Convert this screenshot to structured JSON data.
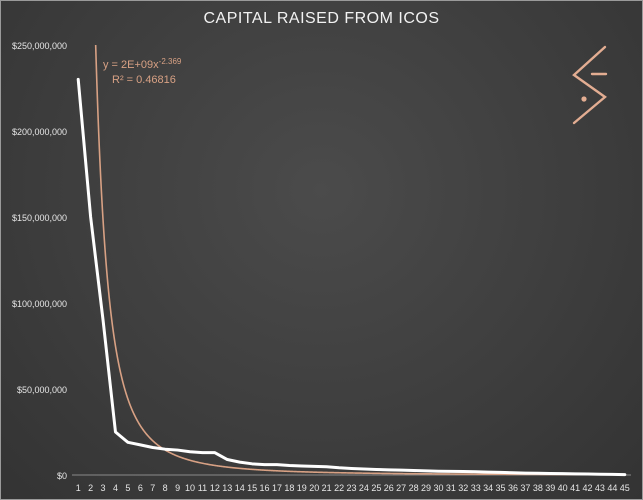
{
  "chart_data": {
    "type": "line",
    "title": "CAPITAL RAISED FROM ICOS",
    "xlabel": "",
    "ylabel": "",
    "x": [
      1,
      2,
      3,
      4,
      5,
      6,
      7,
      8,
      9,
      10,
      11,
      12,
      13,
      14,
      15,
      16,
      17,
      18,
      19,
      20,
      21,
      22,
      23,
      24,
      25,
      26,
      27,
      28,
      29,
      30,
      31,
      32,
      33,
      34,
      35,
      36,
      37,
      38,
      39,
      40,
      41,
      42,
      43,
      44,
      45
    ],
    "ylim": [
      0,
      250000000
    ],
    "yticks": [
      0,
      50000000,
      100000000,
      150000000,
      200000000,
      250000000
    ],
    "ytick_labels": [
      "$0",
      "$50,000,000",
      "$100,000,000",
      "$150,000,000",
      "$200,000,000",
      "$250,000,000"
    ],
    "series": [
      {
        "color": "#ffffff",
        "values": [
          230000000,
          150000000,
          90000000,
          25000000,
          19000000,
          17500000,
          16000000,
          15000000,
          14500000,
          13500000,
          13000000,
          13000000,
          9000000,
          7500000,
          6500000,
          6000000,
          6000000,
          5500000,
          5200000,
          5000000,
          4800000,
          4200000,
          3800000,
          3500000,
          3200000,
          3000000,
          2800000,
          2600000,
          2400000,
          2200000,
          2100000,
          2000000,
          1900000,
          1700000,
          1500000,
          1300000,
          1100000,
          1000000,
          900000,
          800000,
          650000,
          550000,
          450000,
          350000,
          250000
        ]
      }
    ],
    "trendline": {
      "type": "power",
      "coefficient": 2000000000,
      "exponent": -2.369,
      "color": "#d8a184",
      "equation_label": "y = 2E+09x",
      "equation_exponent": "-2.369",
      "r2_label": "R² = 0.46816"
    },
    "grid": false,
    "legend": "none"
  },
  "logo": {
    "name": "angle-dash-dot-logo",
    "color": "#e3ad92"
  }
}
